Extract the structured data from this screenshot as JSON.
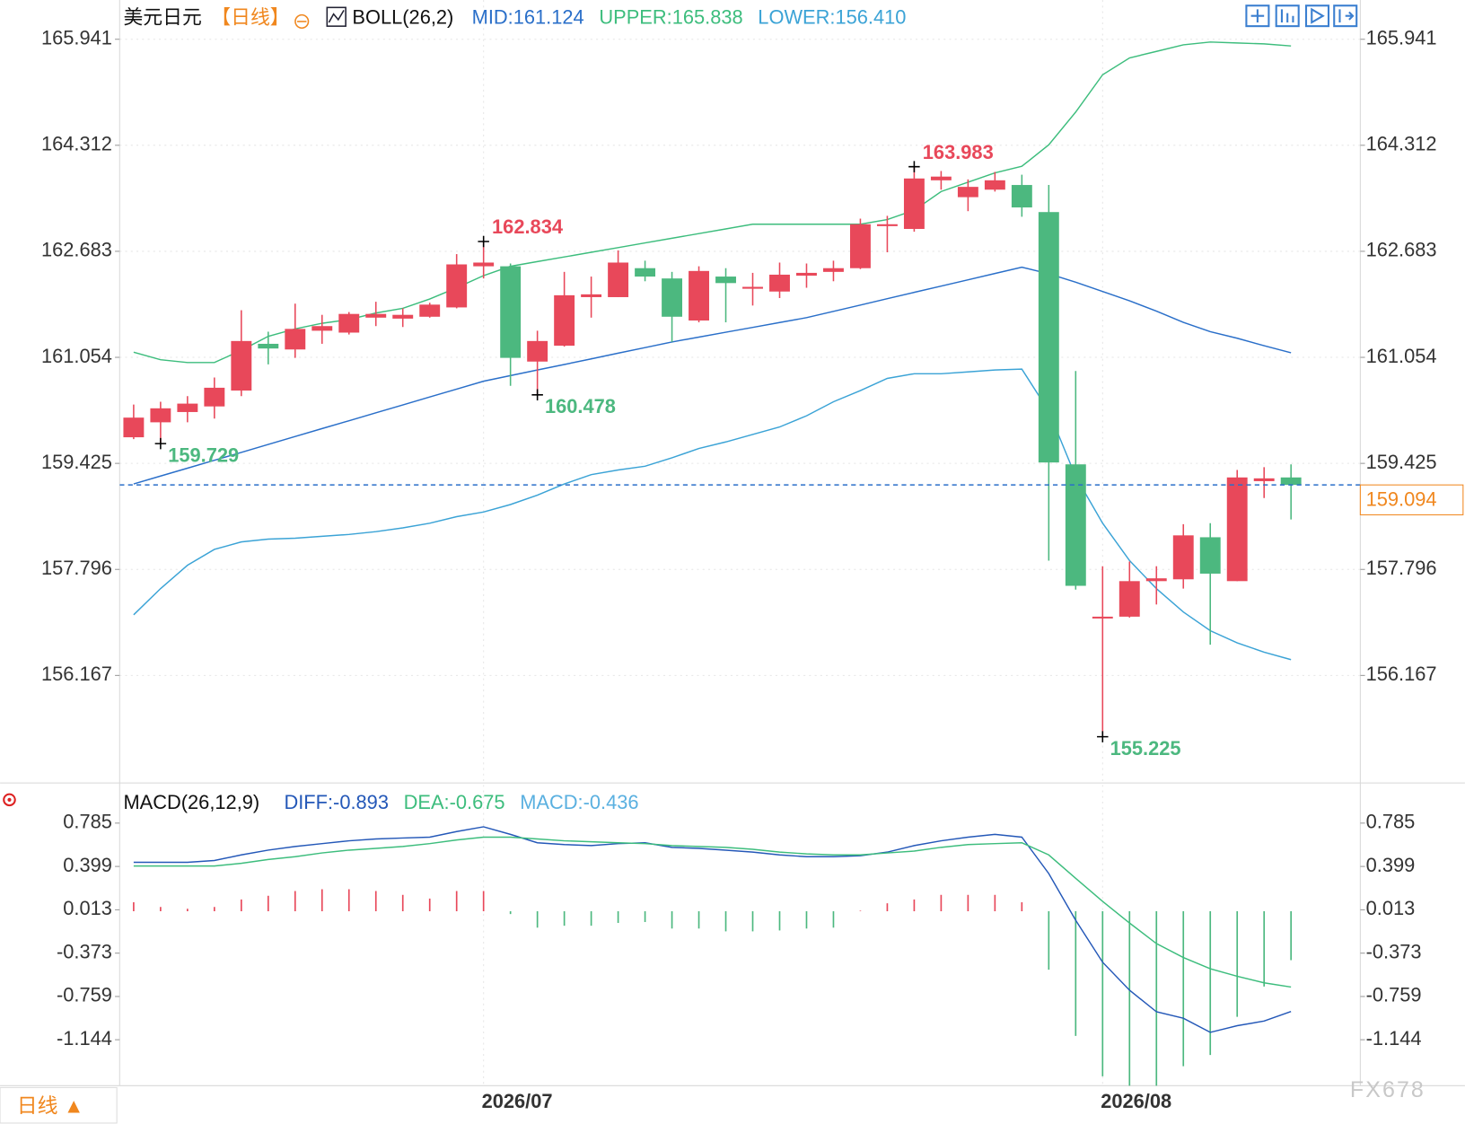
{
  "chart_data": [
    {
      "type": "candlestick",
      "title": "美元日元",
      "period": "【日线】",
      "indicator": "BOLL(26,2)",
      "categories": [
        null,
        null,
        null,
        null,
        null,
        null,
        null,
        null,
        null,
        null,
        null,
        null,
        null,
        "2026/07",
        null,
        null,
        null,
        null,
        null,
        null,
        null,
        null,
        null,
        null,
        null,
        null,
        null,
        null,
        null,
        null,
        null,
        null,
        null,
        null,
        null,
        null,
        "2026/08",
        null,
        null,
        null,
        null,
        null,
        null,
        null
      ],
      "open": [
        159.826,
        160.056,
        160.214,
        160.3,
        160.544,
        161.262,
        161.175,
        161.463,
        161.434,
        161.664,
        161.649,
        161.678,
        161.821,
        162.453,
        162.453,
        160.989,
        161.233,
        161.979,
        161.979,
        162.424,
        162.266,
        161.62,
        162.295,
        162.108,
        162.065,
        162.309,
        162.367,
        162.424,
        163.07,
        163.027,
        163.774,
        163.515,
        163.63,
        163.702,
        163.286,
        159.41,
        157.042,
        157.07,
        157.616,
        157.644,
        158.29,
        157.616,
        159.152,
        159.209
      ],
      "high": [
        160.329,
        160.372,
        160.458,
        160.745,
        161.778,
        161.448,
        161.879,
        161.707,
        161.75,
        161.908,
        161.807,
        161.893,
        162.64,
        162.834,
        162.496,
        161.463,
        162.367,
        162.295,
        162.697,
        162.539,
        162.367,
        162.453,
        162.424,
        162.352,
        162.51,
        162.496,
        162.539,
        163.185,
        163.228,
        163.983,
        163.917,
        163.788,
        163.903,
        163.86,
        163.702,
        160.845,
        157.845,
        157.917,
        157.845,
        158.491,
        158.506,
        159.324,
        159.367,
        159.41
      ],
      "low": [
        159.797,
        159.729,
        160.056,
        160.113,
        160.458,
        160.946,
        161.046,
        161.262,
        161.405,
        161.534,
        161.52,
        161.664,
        161.807,
        162.266,
        160.616,
        160.478,
        161.219,
        161.664,
        161.979,
        162.223,
        161.29,
        161.592,
        161.592,
        161.85,
        161.965,
        162.123,
        162.223,
        162.41,
        162.668,
        162.984,
        163.63,
        163.3,
        163.601,
        163.214,
        157.931,
        157.486,
        155.225,
        157.056,
        157.257,
        157.501,
        156.64,
        157.616,
        158.893,
        158.563
      ],
      "close": [
        160.128,
        160.271,
        160.343,
        160.587,
        161.305,
        161.19,
        161.491,
        161.534,
        161.721,
        161.721,
        161.707,
        161.864,
        162.482,
        162.51,
        161.046,
        161.305,
        162.008,
        162.022,
        162.51,
        162.295,
        161.678,
        162.381,
        162.195,
        162.137,
        162.324,
        162.352,
        162.424,
        163.099,
        163.099,
        163.802,
        163.831,
        163.673,
        163.774,
        163.357,
        159.439,
        157.544,
        157.07,
        157.616,
        157.659,
        158.319,
        157.731,
        159.209,
        159.195,
        159.094
      ],
      "up_color": "#e8485a",
      "down_color": "#4cb87f",
      "last_price_color": "#f0871e",
      "last_line_color": "#2a6fc9",
      "series": [
        {
          "name": "MID:161.124",
          "color": "#2a6fc9",
          "values": [
            159.108,
            159.23,
            159.351,
            159.473,
            159.594,
            159.716,
            159.837,
            159.959,
            160.08,
            160.202,
            160.323,
            160.445,
            160.566,
            160.687,
            160.773,
            160.859,
            160.945,
            161.031,
            161.118,
            161.204,
            161.29,
            161.365,
            161.44,
            161.514,
            161.589,
            161.664,
            161.761,
            161.858,
            161.955,
            162.052,
            162.149,
            162.245,
            162.342,
            162.439,
            162.338,
            162.209,
            162.065,
            161.922,
            161.764,
            161.592,
            161.448,
            161.348,
            161.233,
            161.124
          ]
        },
        {
          "name": "UPPER:165.838",
          "color": "#3dbd7d",
          "values": [
            161.132,
            161.018,
            160.975,
            160.975,
            161.161,
            161.376,
            161.491,
            161.577,
            161.635,
            161.735,
            161.807,
            161.951,
            162.123,
            162.309,
            162.453,
            162.525,
            162.596,
            162.668,
            162.74,
            162.812,
            162.884,
            162.955,
            163.027,
            163.099,
            163.099,
            163.099,
            163.099,
            163.099,
            163.171,
            163.314,
            163.601,
            163.745,
            163.888,
            163.989,
            164.319,
            164.821,
            165.396,
            165.654,
            165.754,
            165.855,
            165.898,
            165.884,
            165.869,
            165.838
          ]
        },
        {
          "name": "LOWER:156.410",
          "color": "#3ba3d6",
          "values": [
            157.099,
            157.501,
            157.86,
            158.104,
            158.219,
            158.262,
            158.276,
            158.305,
            158.333,
            158.376,
            158.434,
            158.506,
            158.606,
            158.678,
            158.793,
            158.936,
            159.108,
            159.252,
            159.324,
            159.381,
            159.51,
            159.654,
            159.754,
            159.869,
            159.984,
            160.156,
            160.372,
            160.544,
            160.73,
            160.802,
            160.802,
            160.831,
            160.86,
            160.874,
            160.228,
            159.223,
            158.506,
            157.931,
            157.501,
            157.142,
            156.855,
            156.668,
            156.525,
            156.41
          ]
        }
      ],
      "ylim": [
        154.515,
        166.544
      ],
      "yticks": [
        165.941,
        164.312,
        162.683,
        161.054,
        159.425,
        157.796,
        156.167
      ],
      "grid": true
    },
    {
      "type": "macd",
      "title": "MACD(26,12,9)",
      "series": [
        {
          "name": "DIFF:-0.893",
          "color": "#2458b8",
          "values": [
            0.436,
            0.436,
            0.436,
            0.452,
            0.502,
            0.544,
            0.577,
            0.602,
            0.627,
            0.644,
            0.652,
            0.66,
            0.71,
            0.752,
            0.685,
            0.61,
            0.594,
            0.585,
            0.602,
            0.61,
            0.569,
            0.56,
            0.544,
            0.527,
            0.502,
            0.486,
            0.486,
            0.494,
            0.527,
            0.585,
            0.627,
            0.66,
            0.685,
            0.66,
            0.336,
            -0.08,
            -0.454,
            -0.703,
            -0.895,
            -0.953,
            -1.078,
            -1.019,
            -0.978,
            -0.893
          ]
        },
        {
          "name": "DEA:-0.675",
          "color": "#3dbd7d",
          "values": [
            0.403,
            0.403,
            0.403,
            0.403,
            0.427,
            0.461,
            0.486,
            0.519,
            0.544,
            0.56,
            0.577,
            0.602,
            0.635,
            0.66,
            0.66,
            0.644,
            0.627,
            0.619,
            0.61,
            0.602,
            0.585,
            0.577,
            0.569,
            0.552,
            0.527,
            0.511,
            0.502,
            0.502,
            0.519,
            0.536,
            0.569,
            0.594,
            0.602,
            0.61,
            0.502,
            0.294,
            0.087,
            -0.105,
            -0.288,
            -0.412,
            -0.512,
            -0.579,
            -0.637,
            -0.675
          ]
        }
      ],
      "histogram": {
        "name": "MACD:-0.436",
        "color": "#5ab0e0",
        "up_color": "#e8485a",
        "down_color": "#4cb87f",
        "values": [
          0.08,
          0.038,
          0.022,
          0.038,
          0.105,
          0.138,
          0.18,
          0.196,
          0.196,
          0.18,
          0.146,
          0.113,
          0.18,
          0.18,
          -0.025,
          -0.146,
          -0.129,
          -0.129,
          -0.104,
          -0.096,
          -0.154,
          -0.154,
          -0.179,
          -0.179,
          -0.171,
          -0.154,
          -0.146,
          0.005,
          0.071,
          0.105,
          0.146,
          0.146,
          0.146,
          0.08,
          -0.52,
          -1.11,
          -1.47,
          -1.56,
          -1.56,
          -1.38,
          -1.28,
          -0.94,
          -0.67,
          -0.436
        ]
      },
      "ylim": [
        -1.62,
        1.08
      ],
      "yticks": [
        0.785,
        0.399,
        0.013,
        -0.373,
        -0.759,
        -1.144
      ]
    }
  ],
  "footer": {
    "period_tab": "日线 ▲",
    "watermark": "FX678"
  }
}
